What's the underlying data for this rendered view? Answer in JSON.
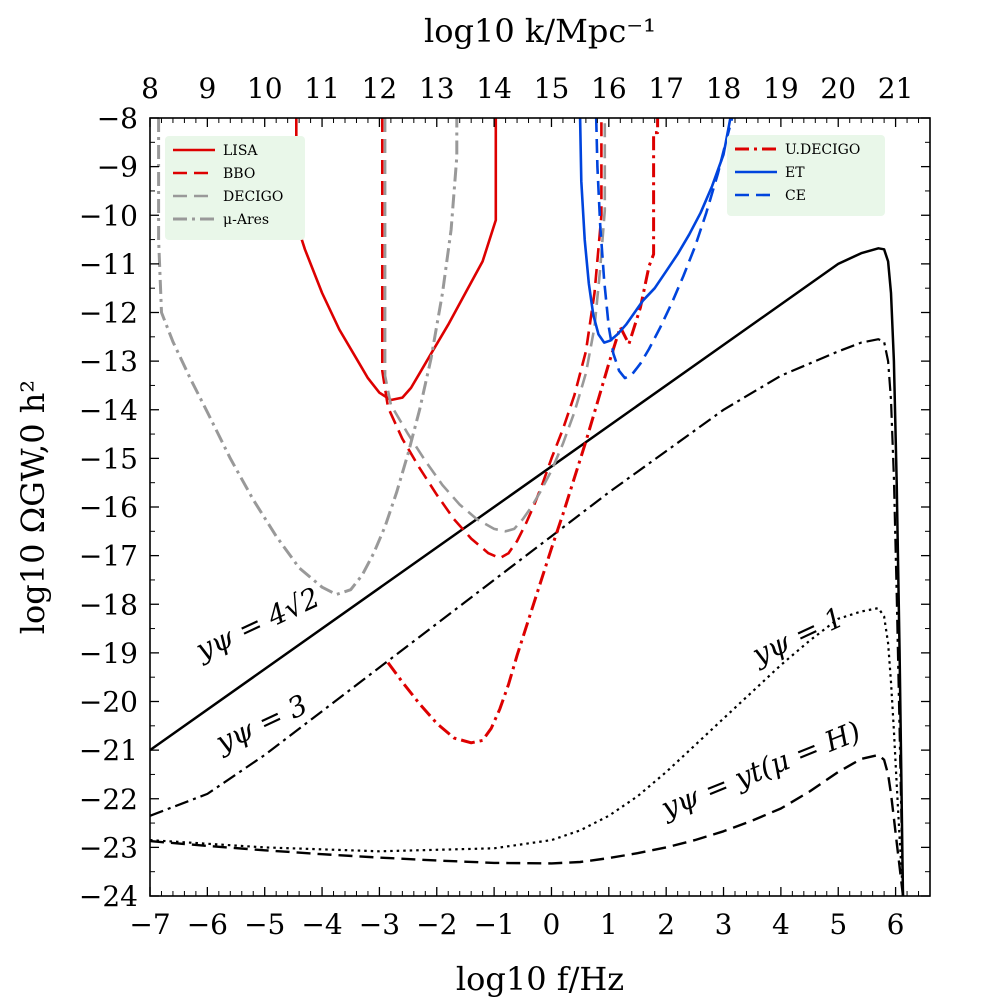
{
  "chart_data": {
    "type": "line",
    "title": "",
    "xlabel": "log10 f/Hz",
    "ylabel": "log10 ΩGW,0 h²",
    "x2label": "log10 k/Mpc⁻¹",
    "xlim": [
      -7,
      6.6
    ],
    "ylim": [
      -24,
      -8
    ],
    "x2lim": [
      8,
      21.6
    ],
    "xticks": [
      "−7",
      "−6",
      "−5",
      "−4",
      "−3",
      "−2",
      "−1",
      "0",
      "1",
      "2",
      "3",
      "4",
      "5",
      "6"
    ],
    "yticks": [
      "−8",
      "−9",
      "−10",
      "−11",
      "−12",
      "−13",
      "−14",
      "−15",
      "−16",
      "−17",
      "−18",
      "−19",
      "−20",
      "−21",
      "−22",
      "−23",
      "−24"
    ],
    "x2ticks": [
      "8",
      "9",
      "10",
      "11",
      "12",
      "13",
      "14",
      "15",
      "16",
      "17",
      "18",
      "19",
      "20",
      "21"
    ],
    "series": [
      {
        "name": "y_psi = 4sqrt2",
        "group": "signal",
        "color": "#000000",
        "dash": "solid",
        "width": 2.5,
        "x": [
          -7,
          5.0,
          5.4,
          5.7,
          5.8,
          5.87,
          5.92,
          5.97,
          6.02,
          6.07,
          6.1,
          6.12,
          6.13
        ],
        "y": [
          -21.0,
          -11.0,
          -10.78,
          -10.68,
          -10.7,
          -10.95,
          -11.6,
          -13.0,
          -15.5,
          -19.0,
          -21.5,
          -23.3,
          -24.0
        ]
      },
      {
        "name": "y_psi = 3",
        "group": "signal",
        "color": "#000000",
        "dash": "dashdot",
        "width": 2.2,
        "x": [
          -7,
          -6,
          -5,
          -4,
          -3,
          -2,
          -1,
          0,
          1,
          2,
          3,
          4,
          5,
          5.4,
          5.7,
          5.8,
          5.87,
          5.92,
          5.97,
          6.02,
          6.07,
          6.1,
          6.12,
          6.13
        ],
        "y": [
          -22.35,
          -21.9,
          -21.1,
          -20.2,
          -19.3,
          -18.4,
          -17.5,
          -16.6,
          -15.7,
          -14.85,
          -14.0,
          -13.3,
          -12.8,
          -12.62,
          -12.55,
          -12.6,
          -13.0,
          -13.8,
          -15.4,
          -17.8,
          -20.6,
          -22.3,
          -23.5,
          -24.0
        ]
      },
      {
        "name": "y_psi = 1",
        "group": "signal",
        "color": "#000000",
        "dash": "dotted",
        "width": 2.2,
        "x": [
          -7,
          -5,
          -3,
          -1,
          0,
          0.5,
          1,
          1.5,
          2,
          2.5,
          3,
          3.5,
          4,
          4.5,
          5,
          5.4,
          5.7,
          5.8,
          5.87,
          5.92,
          5.97,
          6.02,
          6.07,
          6.1,
          6.13
        ],
        "y": [
          -22.85,
          -23.0,
          -23.08,
          -23.02,
          -22.85,
          -22.65,
          -22.35,
          -21.95,
          -21.45,
          -20.9,
          -20.35,
          -19.8,
          -19.25,
          -18.75,
          -18.3,
          -18.15,
          -18.08,
          -18.25,
          -18.8,
          -19.6,
          -20.6,
          -21.7,
          -22.8,
          -23.4,
          -24.0
        ]
      },
      {
        "name": "y_psi = y_t(mu = H)",
        "group": "signal",
        "color": "#000000",
        "dash": "dashed",
        "width": 2.4,
        "x": [
          -7,
          -6,
          -5,
          -4,
          -3,
          -2,
          -1,
          0,
          0.5,
          1,
          1.5,
          2,
          2.5,
          3,
          3.5,
          4,
          4.5,
          5,
          5.4,
          5.7,
          5.8,
          5.87,
          5.92,
          5.97,
          6.02,
          6.07,
          6.1,
          6.13
        ],
        "y": [
          -22.87,
          -22.97,
          -23.06,
          -23.14,
          -23.21,
          -23.27,
          -23.32,
          -23.33,
          -23.3,
          -23.22,
          -23.12,
          -23.0,
          -22.85,
          -22.67,
          -22.45,
          -22.2,
          -21.85,
          -21.45,
          -21.18,
          -21.1,
          -21.2,
          -21.5,
          -21.9,
          -22.4,
          -22.9,
          -23.4,
          -23.7,
          -24.0
        ]
      },
      {
        "name": "LISA",
        "group": "detector-left",
        "color": "#dd0000",
        "dash": "solid",
        "width": 2.6,
        "x": [
          -4.45,
          -4.45,
          -4.3,
          -4.0,
          -3.7,
          -3.4,
          -3.2,
          -3.0,
          -2.8,
          -2.6,
          -2.45,
          -2.3,
          -2.1,
          -1.8,
          -1.5,
          -1.2,
          -0.97,
          -0.97
        ],
        "y": [
          -8.0,
          -10.15,
          -10.7,
          -11.6,
          -12.35,
          -12.95,
          -13.35,
          -13.65,
          -13.8,
          -13.75,
          -13.55,
          -13.25,
          -12.85,
          -12.25,
          -11.6,
          -10.95,
          -10.1,
          -8.0
        ]
      },
      {
        "name": "BBO",
        "group": "detector-left",
        "color": "#dd0000",
        "dash": "dashed",
        "width": 2.6,
        "x": [
          -2.95,
          -2.95,
          -2.85,
          -2.6,
          -2.3,
          -2.0,
          -1.7,
          -1.4,
          -1.1,
          -0.9,
          -0.75,
          -0.6,
          -0.45,
          -0.3,
          -0.15,
          0.0,
          0.2,
          0.4,
          0.6,
          0.75,
          0.87,
          0.87
        ],
        "y": [
          -8.0,
          -13.2,
          -13.95,
          -14.6,
          -15.2,
          -15.75,
          -16.25,
          -16.65,
          -16.95,
          -17.05,
          -16.95,
          -16.7,
          -16.35,
          -15.95,
          -15.5,
          -15.0,
          -14.4,
          -13.7,
          -12.8,
          -11.6,
          -10.0,
          -8.0
        ]
      },
      {
        "name": "DECIGO",
        "group": "detector-left",
        "color": "#999999",
        "dash": "dashed",
        "width": 2.6,
        "x": [
          -2.9,
          -2.9,
          -2.8,
          -2.5,
          -2.2,
          -1.9,
          -1.6,
          -1.3,
          -1.0,
          -0.8,
          -0.65,
          -0.5,
          -0.35,
          -0.2,
          0.0,
          0.2,
          0.4,
          0.6,
          0.75,
          0.85,
          0.93,
          0.93
        ],
        "y": [
          -8.0,
          -13.3,
          -13.9,
          -14.5,
          -15.05,
          -15.55,
          -15.95,
          -16.25,
          -16.45,
          -16.5,
          -16.45,
          -16.25,
          -16.0,
          -15.7,
          -15.25,
          -14.7,
          -14.05,
          -13.25,
          -12.3,
          -11.1,
          -9.9,
          -8.0
        ]
      },
      {
        "name": "μ-Ares",
        "group": "detector-left",
        "color": "#999999",
        "dash": "dashdot",
        "width": 3.0,
        "x": [
          -6.85,
          -6.85,
          -6.8,
          -6.6,
          -6.3,
          -6.0,
          -5.6,
          -5.2,
          -4.8,
          -4.4,
          -4.0,
          -3.75,
          -3.5,
          -3.3,
          -3.1,
          -2.9,
          -2.7,
          -2.5,
          -2.3,
          -2.1,
          -1.9,
          -1.75,
          -1.65,
          -1.65
        ],
        "y": [
          -8.0,
          -10.5,
          -12.0,
          -12.6,
          -13.35,
          -14.05,
          -15.0,
          -15.85,
          -16.6,
          -17.25,
          -17.65,
          -17.8,
          -17.7,
          -17.4,
          -16.95,
          -16.4,
          -15.7,
          -14.9,
          -14.0,
          -12.95,
          -11.6,
          -10.3,
          -8.8,
          -8.0
        ]
      },
      {
        "name": "U.DECIGO",
        "group": "detector-right",
        "color": "#dd0000",
        "dash": "dashdot",
        "width": 3.0,
        "x": [
          -2.85,
          -2.6,
          -2.3,
          -2.0,
          -1.7,
          -1.4,
          -1.2,
          -1.05,
          -0.9,
          -0.75,
          -0.6,
          -0.45,
          -0.3,
          -0.15,
          0.0,
          0.2,
          0.4,
          0.6,
          0.8,
          1.0,
          1.2,
          1.35,
          1.55,
          1.7,
          1.78,
          1.78,
          1.85,
          1.85
        ],
        "y": [
          -19.2,
          -19.6,
          -20.05,
          -20.45,
          -20.75,
          -20.85,
          -20.8,
          -20.55,
          -20.15,
          -19.65,
          -19.05,
          -18.5,
          -17.95,
          -17.4,
          -16.85,
          -16.15,
          -15.4,
          -14.65,
          -13.85,
          -13.05,
          -12.3,
          -12.65,
          -11.9,
          -11.05,
          -10.8,
          -8.3,
          -8.3,
          -8.0
        ]
      },
      {
        "name": "ET",
        "group": "detector-right",
        "color": "#0044dd",
        "dash": "solid",
        "width": 2.6,
        "x": [
          0.5,
          0.52,
          0.58,
          0.65,
          0.73,
          0.82,
          0.92,
          1.02,
          1.15,
          1.3,
          1.45,
          1.6,
          1.8,
          2.0,
          2.2,
          2.4,
          2.6,
          2.8,
          3.0,
          3.12
        ],
        "y": [
          -8.0,
          -9.3,
          -10.5,
          -11.4,
          -12.05,
          -12.45,
          -12.62,
          -12.58,
          -12.45,
          -12.25,
          -12.0,
          -11.75,
          -11.5,
          -11.15,
          -10.8,
          -10.4,
          -9.95,
          -9.4,
          -8.75,
          -8.0
        ]
      },
      {
        "name": "CE",
        "group": "detector-right",
        "color": "#0044dd",
        "dash": "dashed",
        "width": 2.6,
        "x": [
          0.78,
          0.8,
          0.85,
          0.92,
          1.0,
          1.08,
          1.18,
          1.28,
          1.4,
          1.55,
          1.7,
          1.9,
          2.1,
          2.3,
          2.5,
          2.7,
          2.9,
          3.05,
          3.15
        ],
        "y": [
          -8.0,
          -9.0,
          -10.2,
          -11.35,
          -12.3,
          -12.85,
          -13.2,
          -13.35,
          -13.28,
          -13.05,
          -12.75,
          -12.3,
          -11.8,
          -11.25,
          -10.65,
          -9.95,
          -9.15,
          -8.45,
          -8.0
        ]
      }
    ],
    "annotations": [
      {
        "text": "yψ = 4√2",
        "x": -6.1,
        "y": -19.15,
        "rotation_deg": -25
      },
      {
        "text": "yψ = 3",
        "x": -5.75,
        "y": -21.05,
        "rotation_deg": -25
      },
      {
        "text": "yψ = 1",
        "x": 3.6,
        "y": -19.25,
        "rotation_deg": -25
      },
      {
        "text": "yψ = yt(μ = H)",
        "x": 2.0,
        "y": -22.4,
        "rotation_deg": -22
      }
    ]
  }
}
